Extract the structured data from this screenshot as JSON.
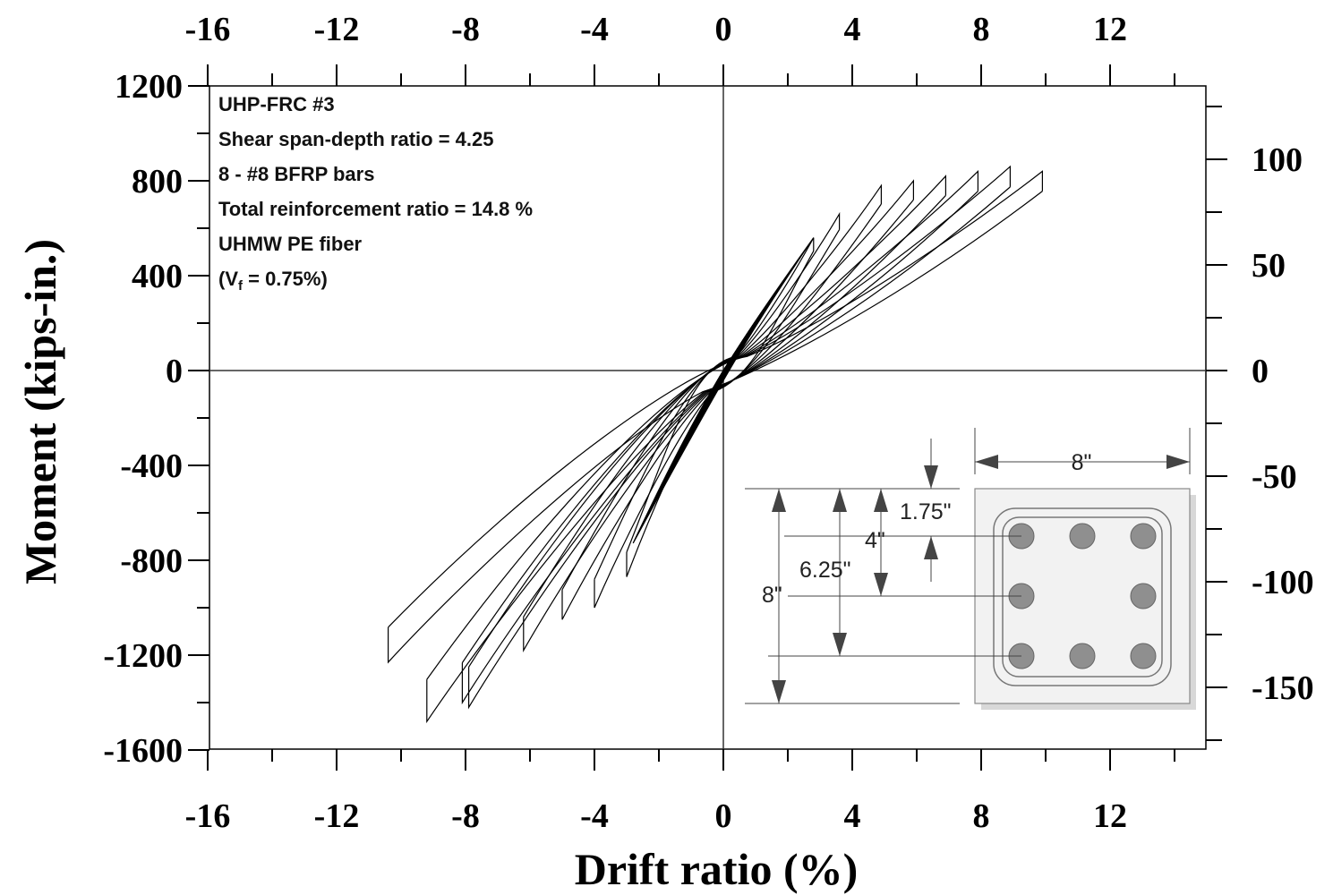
{
  "chart_data": {
    "type": "line",
    "title": "",
    "xlabel": "Drift ratio (%)",
    "ylabel": "Moment (kips-in.)",
    "xlim": [
      -16,
      15
    ],
    "ylim": [
      -1600,
      1200
    ],
    "y2lim": [
      -180,
      135
    ],
    "x_ticks": [
      "-16",
      "-12",
      "-8",
      "-4",
      "0",
      "4",
      "8",
      "12"
    ],
    "x_tick_values": [
      -16,
      -12,
      -8,
      -4,
      0,
      4,
      8,
      12
    ],
    "y_ticks": [
      "1200",
      "800",
      "400",
      "0",
      "-400",
      "-800",
      "-1200",
      "-1600"
    ],
    "y_tick_values": [
      1200,
      800,
      400,
      0,
      -400,
      -800,
      -1200,
      -1600
    ],
    "y2_ticks": [
      "100",
      "50",
      "0",
      "-50",
      "-100",
      "-150"
    ],
    "y2_tick_values": [
      100,
      50,
      0,
      -50,
      -100,
      -150
    ],
    "grid": false,
    "series": [
      {
        "values_note_free": true,
        "loops": [
          {
            "peak_pos": [
              2.8,
              560
            ],
            "peak_neg": [
              -3.0,
              -870
            ]
          },
          {
            "peak_pos": [
              3.6,
              660
            ],
            "peak_neg": [
              -4.0,
              -1000
            ]
          },
          {
            "peak_pos": [
              4.9,
              780
            ],
            "peak_neg": [
              -5.0,
              -1050
            ]
          },
          {
            "peak_pos": [
              5.9,
              800
            ],
            "peak_neg": [
              -6.2,
              -1180
            ]
          },
          {
            "peak_pos": [
              6.9,
              820
            ],
            "peak_neg": [
              -7.9,
              -1420
            ]
          },
          {
            "peak_pos": [
              7.9,
              840
            ],
            "peak_neg": [
              -8.1,
              -1400
            ]
          },
          {
            "peak_pos": [
              8.9,
              860
            ],
            "peak_neg": [
              -9.2,
              -1480
            ]
          },
          {
            "peak_pos": [
              9.9,
              840
            ],
            "peak_neg": [
              -10.4,
              -1230
            ]
          }
        ]
      }
    ]
  },
  "annotation": {
    "specimen": "UHP-FRC #3",
    "shear_span": "Shear span-depth ratio = 4.25",
    "bars": "8 - #8 BFRP bars",
    "reinforcement": "Total reinforcement ratio = 14.8 %",
    "fiber": "UHMW PE fiber",
    "vf_prefix": "(V",
    "vf_sub": "f",
    "vf_suffix": " = 0.75%)"
  },
  "section": {
    "width": "8\"",
    "cover": "1.75\"",
    "spacing": "4\"",
    "outer_row": "6.25\"",
    "height": "8\""
  }
}
